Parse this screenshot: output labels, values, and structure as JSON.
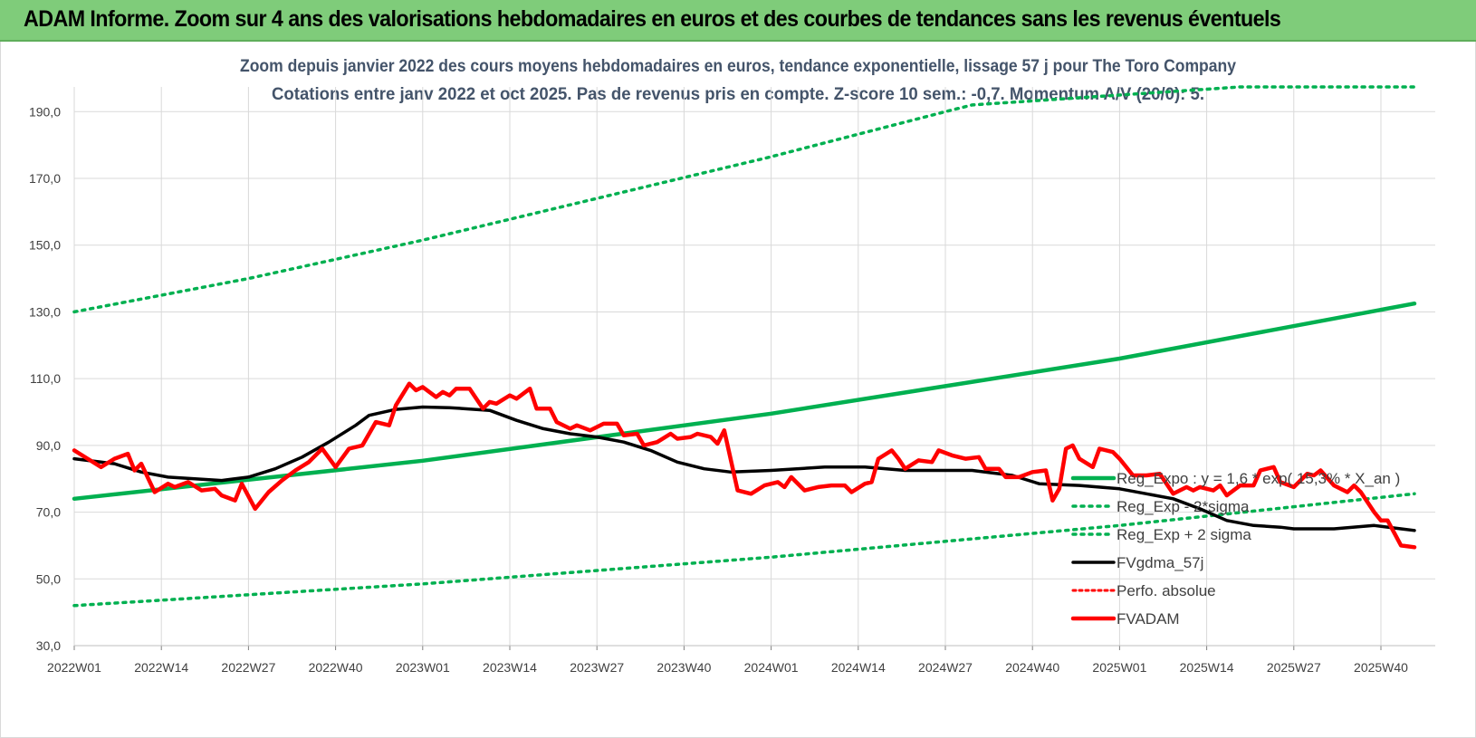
{
  "header": {
    "title": "ADAM Informe. Zoom sur 4 ans des valorisations hebdomadaires en euros et des courbes de tendances sans les revenus éventuels"
  },
  "chart_data": {
    "type": "line",
    "title": "Zoom depuis janvier 2022 des cours moyens hebdomadaires en euros, tendance exponentielle, lissage 57 j pour The Toro Company",
    "subtitle": "Cotations entre janv 2022 et oct 2025. Pas de revenus pris en compte. Z-score 10 sem.: -0,7.  Momentum A/V (20/0): 5.",
    "xlabel": "",
    "ylabel": "",
    "ylim": [
      30,
      190
    ],
    "yticks": [
      "30,0",
      "50,0",
      "70,0",
      "90,0",
      "110,0",
      "130,0",
      "150,0",
      "170,0",
      "190,0"
    ],
    "ytick_values": [
      30,
      50,
      70,
      90,
      110,
      130,
      150,
      170,
      190
    ],
    "x_tick_labels": [
      "2022W01",
      "2022W14",
      "2022W27",
      "2022W40",
      "2023W01",
      "2023W14",
      "2023W27",
      "2023W40",
      "2024W01",
      "2024W14",
      "2024W27",
      "2024W40",
      "2025W01",
      "2025W14",
      "2025W27",
      "2025W40"
    ],
    "x_tick_index": [
      0,
      13,
      26,
      39,
      52,
      65,
      78,
      91,
      104,
      117,
      130,
      143,
      156,
      169,
      182,
      195
    ],
    "x_range": [
      0,
      200
    ],
    "legend_position": "right",
    "series": [
      {
        "name": "Reg_Expo : y = 1,6 * exp( 15,3% * X_an )",
        "color": "#00b050",
        "style": "solid",
        "points": [
          [
            0,
            74
          ],
          [
            52,
            85.4
          ],
          [
            104,
            99.5
          ],
          [
            156,
            116
          ],
          [
            200,
            132.5
          ]
        ]
      },
      {
        "name": "Reg_Exp - 2*sigma",
        "color": "#00b050",
        "style": "dotted",
        "points": [
          [
            0,
            42
          ],
          [
            52,
            48.5
          ],
          [
            104,
            56.5
          ],
          [
            156,
            66
          ],
          [
            200,
            75.5
          ]
        ]
      },
      {
        "name": "Reg_Exp + 2 sigma",
        "color": "#00b050",
        "style": "dotted",
        "points": [
          [
            0,
            130
          ],
          [
            26,
            140
          ],
          [
            52,
            151.5
          ],
          [
            78,
            164
          ],
          [
            104,
            176.5
          ],
          [
            130,
            190
          ],
          [
            134,
            192
          ],
          [
            174,
            199
          ],
          [
            200,
            199
          ]
        ]
      },
      {
        "name": "FVgdma_57j",
        "color": "#000000",
        "style": "solid",
        "points": [
          [
            0,
            86
          ],
          [
            6,
            84.5
          ],
          [
            10,
            82
          ],
          [
            14,
            80.5
          ],
          [
            18,
            80
          ],
          [
            22,
            79.5
          ],
          [
            26,
            80.5
          ],
          [
            30,
            83
          ],
          [
            34,
            86.5
          ],
          [
            38,
            91
          ],
          [
            42,
            96
          ],
          [
            44,
            99
          ],
          [
            48,
            100.8
          ],
          [
            52,
            101.5
          ],
          [
            56,
            101.3
          ],
          [
            62,
            100.5
          ],
          [
            66,
            97.5
          ],
          [
            70,
            95
          ],
          [
            74,
            93.5
          ],
          [
            78,
            92.5
          ],
          [
            82,
            91
          ],
          [
            86,
            88.5
          ],
          [
            90,
            85
          ],
          [
            94,
            83
          ],
          [
            98,
            82
          ],
          [
            104,
            82.5
          ],
          [
            112,
            83.5
          ],
          [
            118,
            83.5
          ],
          [
            124,
            82.5
          ],
          [
            128,
            82.5
          ],
          [
            134,
            82.5
          ],
          [
            140,
            81
          ],
          [
            144,
            78.5
          ],
          [
            150,
            78
          ],
          [
            156,
            77
          ],
          [
            160,
            75.5
          ],
          [
            164,
            74
          ],
          [
            168,
            71
          ],
          [
            172,
            67.5
          ],
          [
            176,
            66
          ],
          [
            180,
            65.5
          ],
          [
            182,
            65
          ],
          [
            188,
            65
          ],
          [
            194,
            66
          ],
          [
            198,
            65
          ],
          [
            200,
            64.5
          ]
        ]
      },
      {
        "name": "Perfo. absolue",
        "color": "#ff0000",
        "style": "dotted",
        "points": []
      },
      {
        "name": "FVADAM",
        "color": "#ff0000",
        "style": "solid",
        "points": [
          [
            0,
            88.5
          ],
          [
            2,
            86
          ],
          [
            4,
            83.5
          ],
          [
            6,
            86
          ],
          [
            8,
            87.5
          ],
          [
            9,
            82.5
          ],
          [
            10,
            84.5
          ],
          [
            12,
            76
          ],
          [
            14,
            78.5
          ],
          [
            15,
            77.5
          ],
          [
            17,
            79
          ],
          [
            19,
            76.5
          ],
          [
            21,
            77
          ],
          [
            22,
            75
          ],
          [
            24,
            73.5
          ],
          [
            25,
            78.5
          ],
          [
            27,
            71
          ],
          [
            29,
            76
          ],
          [
            31,
            79.5
          ],
          [
            33,
            82.5
          ],
          [
            35,
            85
          ],
          [
            37,
            89
          ],
          [
            39,
            83.5
          ],
          [
            41,
            89
          ],
          [
            43,
            90
          ],
          [
            45,
            97
          ],
          [
            47,
            96
          ],
          [
            48,
            102
          ],
          [
            50,
            108.5
          ],
          [
            51,
            106.5
          ],
          [
            52,
            107.5
          ],
          [
            54,
            104.5
          ],
          [
            55,
            106
          ],
          [
            56,
            105
          ],
          [
            57,
            107
          ],
          [
            59,
            107
          ],
          [
            61,
            101
          ],
          [
            62,
            103
          ],
          [
            63,
            102.5
          ],
          [
            65,
            105
          ],
          [
            66,
            104
          ],
          [
            68,
            107
          ],
          [
            69,
            101
          ],
          [
            71,
            101
          ],
          [
            72,
            97
          ],
          [
            74,
            95
          ],
          [
            75,
            96
          ],
          [
            77,
            94.5
          ],
          [
            79,
            96.5
          ],
          [
            81,
            96.5
          ],
          [
            82,
            93
          ],
          [
            84,
            93.5
          ],
          [
            85,
            90
          ],
          [
            87,
            91
          ],
          [
            89,
            93.5
          ],
          [
            90,
            92
          ],
          [
            92,
            92.5
          ],
          [
            93,
            93.5
          ],
          [
            95,
            92.5
          ],
          [
            96,
            90.5
          ],
          [
            97,
            94.5
          ],
          [
            99,
            76.5
          ],
          [
            101,
            75.5
          ],
          [
            103,
            78
          ],
          [
            105,
            79
          ],
          [
            106,
            77.5
          ],
          [
            107,
            80.5
          ],
          [
            109,
            76.5
          ],
          [
            111,
            77.5
          ],
          [
            113,
            78
          ],
          [
            115,
            78
          ],
          [
            116,
            76
          ],
          [
            118,
            78.5
          ],
          [
            119,
            79
          ],
          [
            120,
            86
          ],
          [
            122,
            88.5
          ],
          [
            123,
            86
          ],
          [
            124,
            83
          ],
          [
            126,
            85.5
          ],
          [
            128,
            85
          ],
          [
            129,
            88.5
          ],
          [
            131,
            87
          ],
          [
            133,
            86
          ],
          [
            135,
            86.5
          ],
          [
            136,
            83
          ],
          [
            138,
            83
          ],
          [
            139,
            80.5
          ],
          [
            141,
            80.5
          ],
          [
            143,
            82
          ],
          [
            145,
            82.5
          ],
          [
            146,
            73.5
          ],
          [
            147,
            77
          ],
          [
            148,
            89
          ],
          [
            149,
            90
          ],
          [
            150,
            86
          ],
          [
            152,
            83.5
          ],
          [
            153,
            89
          ],
          [
            155,
            88
          ],
          [
            156,
            86
          ],
          [
            158,
            81
          ],
          [
            160,
            81
          ],
          [
            162,
            81.5
          ],
          [
            164,
            75.5
          ],
          [
            166,
            77.5
          ],
          [
            167,
            76.5
          ],
          [
            168,
            77.5
          ],
          [
            170,
            76.5
          ],
          [
            171,
            78
          ],
          [
            172,
            75
          ],
          [
            174,
            78
          ],
          [
            176,
            78
          ],
          [
            177,
            82.5
          ],
          [
            179,
            83.5
          ],
          [
            180,
            79
          ],
          [
            182,
            77.5
          ],
          [
            184,
            81.5
          ],
          [
            185,
            81
          ],
          [
            186,
            82.5
          ],
          [
            188,
            78
          ],
          [
            190,
            76
          ],
          [
            191,
            78
          ],
          [
            192,
            76
          ],
          [
            194,
            70
          ],
          [
            195,
            67.5
          ],
          [
            196,
            67.5
          ],
          [
            198,
            60
          ],
          [
            200,
            59.5
          ]
        ]
      }
    ]
  }
}
